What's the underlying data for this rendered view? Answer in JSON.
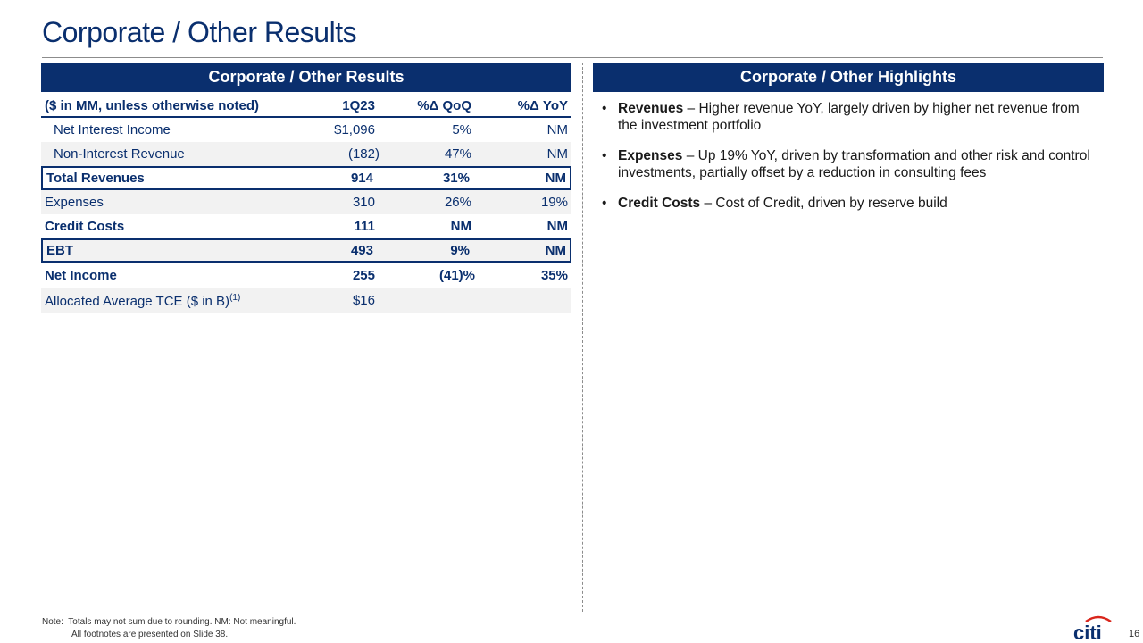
{
  "title": "Corporate / Other Results",
  "left_panel": {
    "header": "Corporate / Other Results",
    "table": {
      "columns": [
        "($ in MM, unless otherwise noted)",
        "1Q23",
        "%Δ QoQ",
        "%Δ YoY"
      ],
      "rows": [
        {
          "label": "Net Interest Income",
          "v1": "$1,096",
          "v2": "5%",
          "v3": "NM"
        },
        {
          "label": "Non-Interest Revenue",
          "v1": "(182)",
          "v2": "47%",
          "v3": "NM"
        },
        {
          "label": "Total Revenues",
          "v1": "914",
          "v2": "31%",
          "v3": "NM"
        },
        {
          "label": "Expenses",
          "v1": "310",
          "v2": "26%",
          "v3": "19%"
        },
        {
          "label": "Credit Costs",
          "v1": "111",
          "v2": "NM",
          "v3": "NM"
        },
        {
          "label": "EBT",
          "v1": "493",
          "v2": "9%",
          "v3": "NM"
        },
        {
          "label": "Net Income",
          "v1": "255",
          "v2": "(41)%",
          "v3": "35%"
        },
        {
          "label": "Allocated Average TCE ($ in B)",
          "sup": "(1)",
          "v1": "$16",
          "v2": "",
          "v3": ""
        }
      ]
    }
  },
  "right_panel": {
    "header": "Corporate / Other Highlights",
    "bullets": [
      {
        "bold": "Revenues",
        "text": " – Higher revenue YoY, largely driven by higher net revenue from the investment portfolio"
      },
      {
        "bold": "Expenses",
        "text": " – Up 19% YoY, driven by transformation and other risk and control investments, partially offset by a reduction in consulting fees"
      },
      {
        "bold": "Credit Costs",
        "text": " – Cost of Credit, driven by reserve build"
      }
    ]
  },
  "footer": {
    "note_label": "Note:",
    "note_line1": "Totals may not sum due to rounding. NM: Not meaningful.",
    "note_line2": "All footnotes are presented on Slide 38.",
    "page_number": "16"
  },
  "logo": {
    "text": "citi",
    "icon": "citi-logo",
    "brand_color": "#0a2f6e",
    "arc_color": "#d9261c"
  },
  "colors": {
    "navy": "#0a2f6e",
    "shade": "#f2f2f2"
  }
}
